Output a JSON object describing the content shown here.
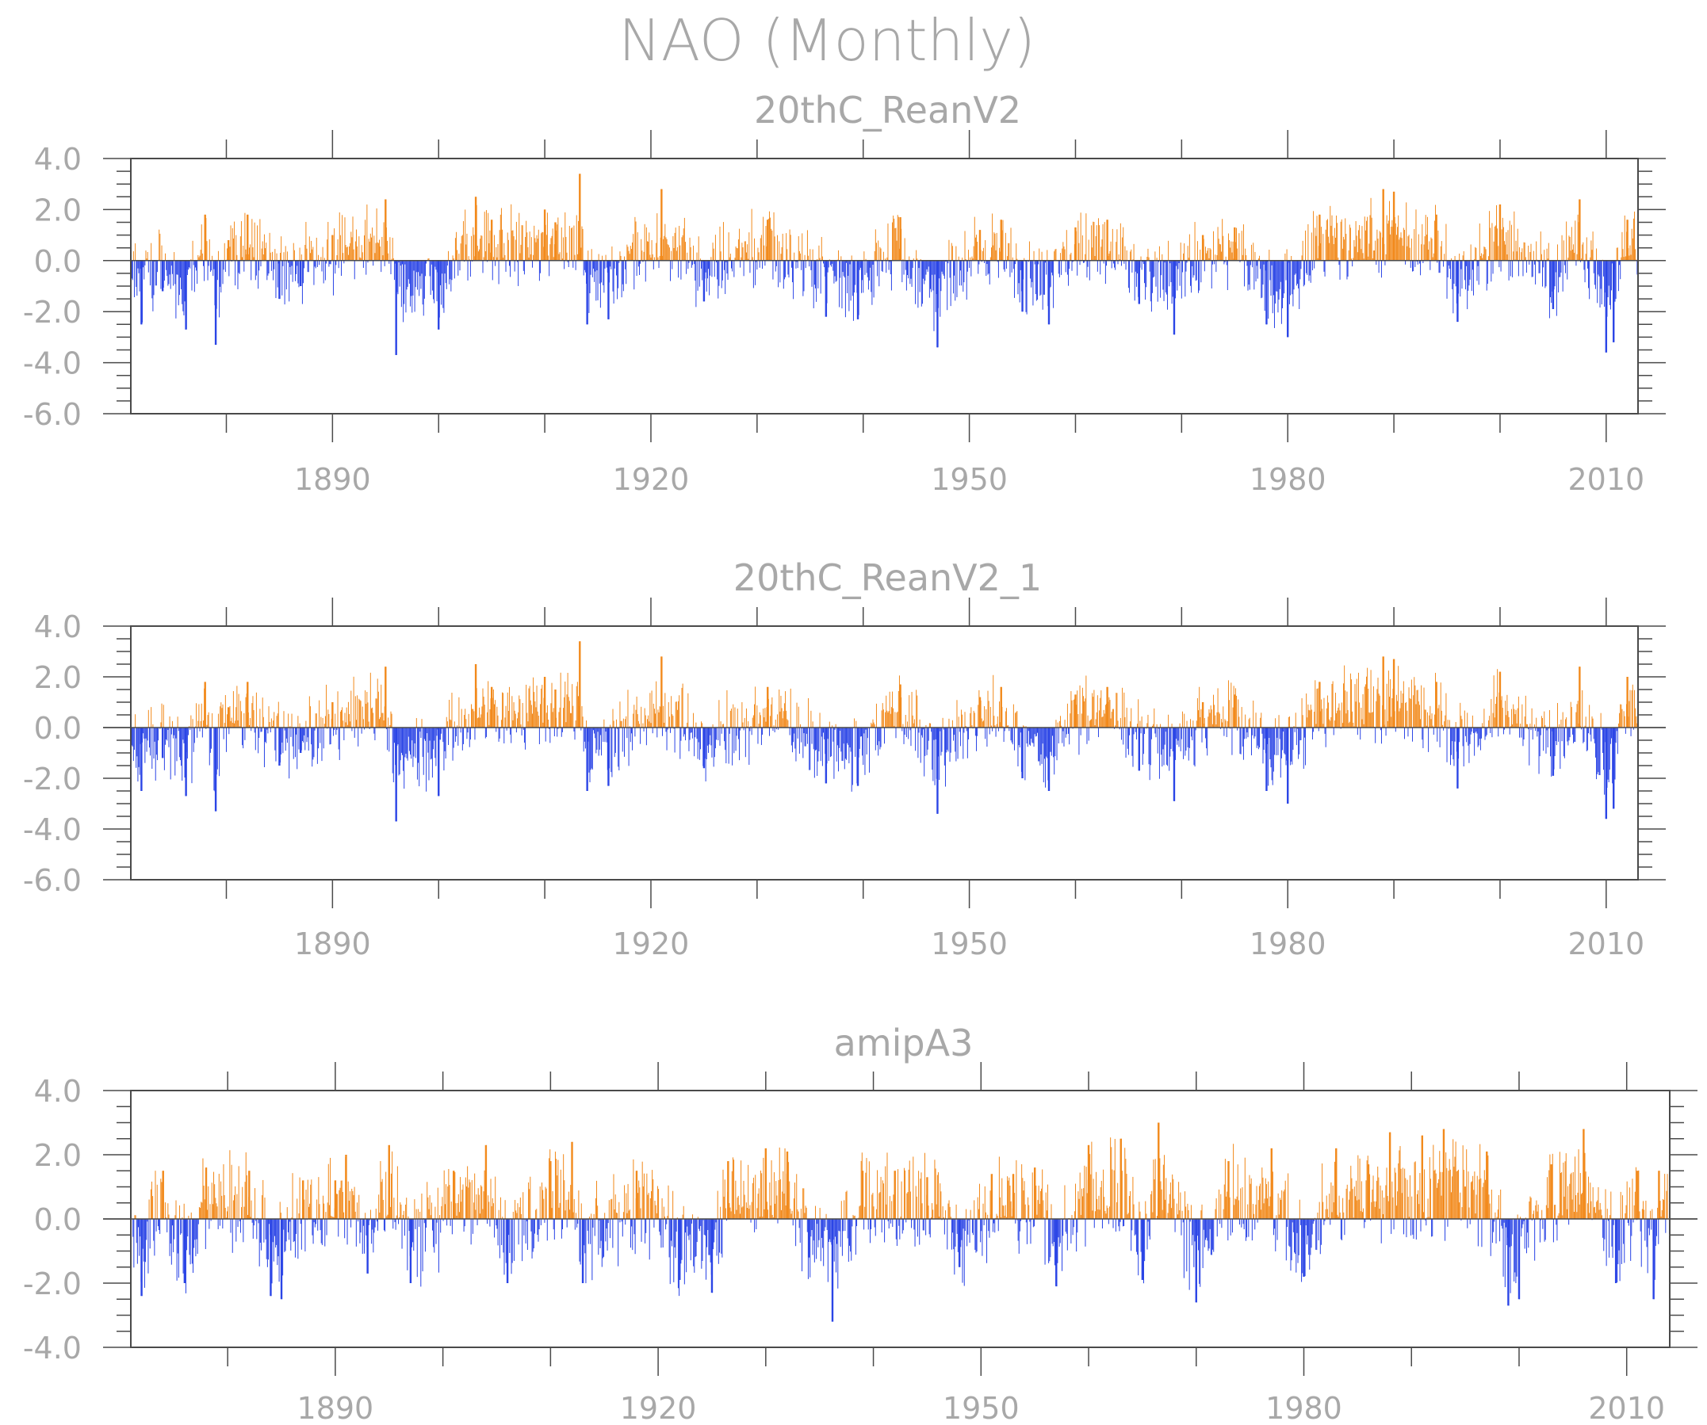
{
  "title": "NAO (Monthly)",
  "colors": {
    "positive": "#f28a1c",
    "negative": "#2b45e6",
    "axis": "#4a4a4a",
    "text": "#a8a8a8",
    "missing": "#d8d8d8"
  },
  "chart_data": [
    {
      "type": "bar",
      "title": "20thC_ReanV2",
      "xlabel": "",
      "ylabel": "",
      "xlim": [
        1871,
        2013
      ],
      "ylim": [
        -6,
        4
      ],
      "yticks": [
        "4.0",
        "2.0",
        "0.0",
        "-2.0",
        "-4.0",
        "-6.0"
      ],
      "yticks_values": [
        4,
        2,
        0,
        -2,
        -4,
        -6
      ],
      "xticks": [
        "1890",
        "1920",
        "1950",
        "1980",
        "2010"
      ],
      "xticks_values": [
        1890,
        1920,
        1950,
        1980,
        2010
      ],
      "series": [
        {
          "frequency": "monthly",
          "start": 1871.0,
          "end": 2012.9,
          "reference_points": [
            [
              1871.1,
              -0.7
            ],
            [
              1872.0,
              -2.5
            ],
            [
              1874.0,
              -1.2
            ],
            [
              1876.2,
              -2.7
            ],
            [
              1878.0,
              1.8
            ],
            [
              1879.0,
              -3.3
            ],
            [
              1880.2,
              0.8
            ],
            [
              1882.0,
              1.8
            ],
            [
              1885.0,
              -1.5
            ],
            [
              1887.0,
              -1.0
            ],
            [
              1890.0,
              1.0
            ],
            [
              1895.0,
              2.4
            ],
            [
              1896.0,
              -3.7
            ],
            [
              1900.0,
              -2.7
            ],
            [
              1903.5,
              2.5
            ],
            [
              1905.0,
              1.6
            ],
            [
              1910.0,
              2.0
            ],
            [
              1911.0,
              1.5
            ],
            [
              1913.3,
              3.4
            ],
            [
              1914.0,
              -2.5
            ],
            [
              1916.0,
              -2.3
            ],
            [
              1921.0,
              2.8
            ],
            [
              1925.0,
              -1.6
            ],
            [
              1931.0,
              1.6
            ],
            [
              1936.5,
              -2.2
            ],
            [
              1939.5,
              -2.3
            ],
            [
              1943.5,
              1.7
            ],
            [
              1947.0,
              -3.4
            ],
            [
              1951.0,
              1.2
            ],
            [
              1953.0,
              1.6
            ],
            [
              1955.0,
              -2.0
            ],
            [
              1957.5,
              -2.5
            ],
            [
              1960.0,
              1.3
            ],
            [
              1963.0,
              1.6
            ],
            [
              1966.0,
              -1.7
            ],
            [
              1969.3,
              -2.9
            ],
            [
              1972.0,
              1.0
            ],
            [
              1975.0,
              1.3
            ],
            [
              1978.0,
              -2.5
            ],
            [
              1980.0,
              -3.0
            ],
            [
              1983.0,
              1.8
            ],
            [
              1989.0,
              2.8
            ],
            [
              1990.0,
              2.7
            ],
            [
              1994.0,
              1.8
            ],
            [
              1996.0,
              -2.4
            ],
            [
              2000.0,
              2.2
            ],
            [
              2005.0,
              -1.9
            ],
            [
              2007.5,
              2.4
            ],
            [
              2010.0,
              -3.6
            ],
            [
              2010.7,
              -3.2
            ],
            [
              2012.0,
              1.6
            ]
          ]
        }
      ]
    },
    {
      "type": "bar",
      "title": "20thC_ReanV2_1",
      "xlabel": "",
      "ylabel": "",
      "xlim": [
        1871,
        2013
      ],
      "ylim": [
        -6,
        4
      ],
      "yticks": [
        "4.0",
        "2.0",
        "0.0",
        "-2.0",
        "-4.0",
        "-6.0"
      ],
      "yticks_values": [
        4,
        2,
        0,
        -2,
        -4,
        -6
      ],
      "xticks": [
        "1890",
        "1920",
        "1950",
        "1980",
        "2010"
      ],
      "xticks_values": [
        1890,
        1920,
        1950,
        1980,
        2010
      ],
      "series": [
        {
          "frequency": "monthly",
          "start": 1871.0,
          "end": 2012.9,
          "reference_points": [
            [
              1871.1,
              -0.7
            ],
            [
              1872.0,
              -2.5
            ],
            [
              1874.0,
              -1.2
            ],
            [
              1876.2,
              -2.7
            ],
            [
              1878.0,
              1.8
            ],
            [
              1879.0,
              -3.3
            ],
            [
              1880.2,
              0.8
            ],
            [
              1882.0,
              1.8
            ],
            [
              1885.0,
              -1.5
            ],
            [
              1887.0,
              -1.0
            ],
            [
              1890.0,
              1.0
            ],
            [
              1895.0,
              2.4
            ],
            [
              1896.0,
              -3.7
            ],
            [
              1900.0,
              -2.7
            ],
            [
              1903.5,
              2.5
            ],
            [
              1905.0,
              1.6
            ],
            [
              1910.0,
              2.0
            ],
            [
              1911.0,
              1.5
            ],
            [
              1913.3,
              3.4
            ],
            [
              1914.0,
              -2.5
            ],
            [
              1916.0,
              -2.3
            ],
            [
              1921.0,
              2.8
            ],
            [
              1925.0,
              -1.6
            ],
            [
              1931.0,
              1.6
            ],
            [
              1936.5,
              -2.2
            ],
            [
              1939.5,
              -2.3
            ],
            [
              1943.5,
              1.7
            ],
            [
              1947.0,
              -3.4
            ],
            [
              1951.0,
              1.2
            ],
            [
              1953.0,
              1.6
            ],
            [
              1955.0,
              -2.0
            ],
            [
              1957.5,
              -2.5
            ],
            [
              1960.0,
              1.3
            ],
            [
              1963.0,
              1.6
            ],
            [
              1966.0,
              -1.7
            ],
            [
              1969.3,
              -2.9
            ],
            [
              1972.0,
              1.0
            ],
            [
              1975.0,
              1.3
            ],
            [
              1978.0,
              -2.5
            ],
            [
              1980.0,
              -3.0
            ],
            [
              1983.0,
              1.8
            ],
            [
              1989.0,
              2.8
            ],
            [
              1990.0,
              2.7
            ],
            [
              1994.0,
              1.8
            ],
            [
              1996.0,
              -2.4
            ],
            [
              2000.0,
              2.2
            ],
            [
              2005.0,
              -1.9
            ],
            [
              2007.5,
              2.4
            ],
            [
              2010.0,
              -3.6
            ],
            [
              2010.7,
              -3.2
            ],
            [
              2012.0,
              2.0
            ]
          ]
        }
      ]
    },
    {
      "type": "bar",
      "title": "amipA3",
      "xlabel": "",
      "ylabel": "",
      "xlim": [
        1871,
        2014
      ],
      "ylim": [
        -4,
        4
      ],
      "yticks": [
        "4.0",
        "2.0",
        "0.0",
        "-2.0",
        "-4.0"
      ],
      "yticks_values": [
        4,
        2,
        0,
        -2,
        -4
      ],
      "xticks": [
        "1890",
        "1920",
        "1950",
        "1980",
        "2010"
      ],
      "xticks_values": [
        1890,
        1920,
        1950,
        1980,
        2010
      ],
      "series": [
        {
          "frequency": "monthly",
          "start": 1871.2,
          "end": 2013.8,
          "reference_points": [
            [
              1872.0,
              -2.4
            ],
            [
              1874.0,
              1.5
            ],
            [
              1876.0,
              -2.0
            ],
            [
              1878.0,
              1.6
            ],
            [
              1882.0,
              1.5
            ],
            [
              1884.0,
              -2.4
            ],
            [
              1885.0,
              -2.5
            ],
            [
              1887.0,
              1.2
            ],
            [
              1890.0,
              1.2
            ],
            [
              1891.0,
              2.0
            ],
            [
              1893.0,
              -1.7
            ],
            [
              1895.0,
              2.3
            ],
            [
              1897.0,
              -2.0
            ],
            [
              1901.0,
              1.5
            ],
            [
              1904.0,
              2.3
            ],
            [
              1906.0,
              -2.0
            ],
            [
              1910.0,
              1.8
            ],
            [
              1912.0,
              2.4
            ],
            [
              1913.0,
              -2.0
            ],
            [
              1918.0,
              1.5
            ],
            [
              1922.0,
              -1.9
            ],
            [
              1925.0,
              -2.3
            ],
            [
              1926.5,
              1.8
            ],
            [
              1930.0,
              2.2
            ],
            [
              1932.0,
              2.1
            ],
            [
              1934.0,
              -1.2
            ],
            [
              1936.2,
              -3.2
            ],
            [
              1939.0,
              1.5
            ],
            [
              1942.0,
              1.5
            ],
            [
              1945.0,
              1.3
            ],
            [
              1948.0,
              -1.5
            ],
            [
              1951.0,
              1.4
            ],
            [
              1953.0,
              1.4
            ],
            [
              1955.0,
              1.6
            ],
            [
              1957.0,
              -2.1
            ],
            [
              1960.0,
              2.3
            ],
            [
              1963.0,
              2.5
            ],
            [
              1965.0,
              -1.9
            ],
            [
              1966.5,
              3.0
            ],
            [
              1970.0,
              -2.6
            ],
            [
              1973.0,
              1.8
            ],
            [
              1977.0,
              2.2
            ],
            [
              1980.0,
              -1.8
            ],
            [
              1983.0,
              2.2
            ],
            [
              1986.0,
              1.7
            ],
            [
              1988.0,
              2.7
            ],
            [
              1991.0,
              2.6
            ],
            [
              1993.0,
              2.8
            ],
            [
              1997.0,
              2.1
            ],
            [
              1999.0,
              -2.7
            ],
            [
              2000.0,
              -2.5
            ],
            [
              2003.0,
              1.7
            ],
            [
              2006.0,
              2.8
            ],
            [
              2009.0,
              -2.0
            ],
            [
              2011.0,
              1.5
            ],
            [
              2012.5,
              -2.5
            ],
            [
              2013.0,
              1.5
            ]
          ]
        }
      ]
    }
  ]
}
